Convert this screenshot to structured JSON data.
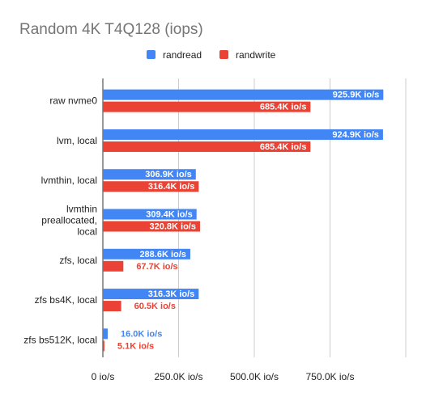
{
  "chart_data": {
    "type": "bar",
    "orientation": "horizontal",
    "title": "Random 4K T4Q128 (iops)",
    "categories": [
      [
        "raw nvme0"
      ],
      [
        "lvm, local"
      ],
      [
        "lvmthin, local"
      ],
      [
        "lvmthin",
        "preallocated,",
        "local"
      ],
      [
        "zfs, local"
      ],
      [
        "zfs bs4K, local"
      ],
      [
        "zfs bs512K, local"
      ]
    ],
    "series": [
      {
        "name": "randread",
        "color": "#4285f4",
        "values": [
          925.9,
          924.9,
          306.9,
          309.4,
          288.6,
          316.3,
          16.0
        ],
        "labels": [
          "925.9K io/s",
          "924.9K io/s",
          "306.9K io/s",
          "309.4K io/s",
          "288.6K io/s",
          "316.3K io/s",
          "16.0K io/s"
        ]
      },
      {
        "name": "randwrite",
        "color": "#ea4335",
        "values": [
          685.4,
          685.4,
          316.4,
          320.8,
          67.7,
          60.5,
          5.1
        ],
        "labels": [
          "685.4K io/s",
          "685.4K io/s",
          "316.4K io/s",
          "320.8K io/s",
          "67.7K io/s",
          "60.5K io/s",
          "5.1K io/s"
        ]
      }
    ],
    "x_ticks": [
      0,
      250,
      500,
      750
    ],
    "x_tick_labels": [
      "0 io/s",
      "250.0K io/s",
      "500.0K io/s",
      "750.0K io/s"
    ],
    "xlim": [
      0,
      1000
    ],
    "units": "K io/s",
    "grid": true,
    "legend_position": "top-center"
  }
}
